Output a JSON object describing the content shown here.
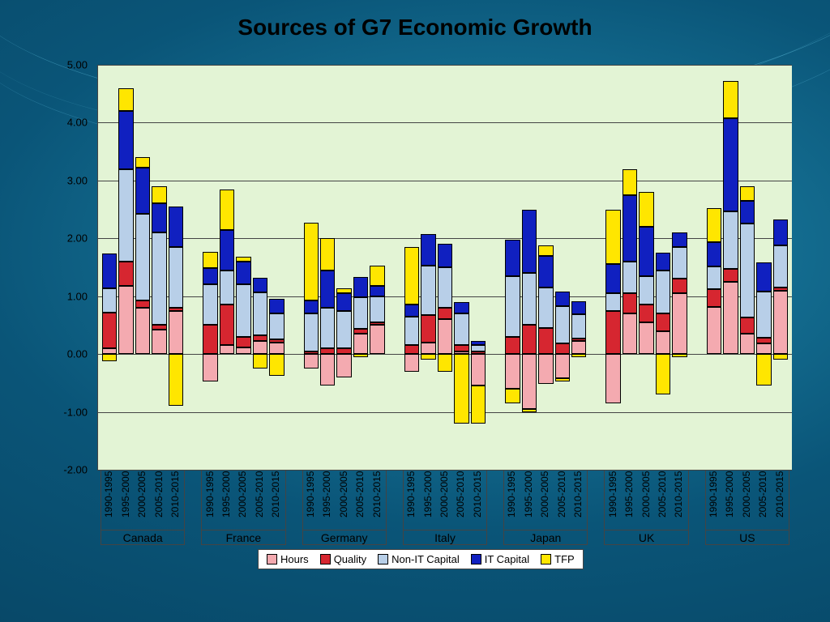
{
  "title": "Sources of G7 Economic Growth",
  "chart": {
    "type": "stacked-bar",
    "background_color": "#e3f4d5",
    "slide_background": "radial #1f89ad -> #063d5a",
    "grid_color": "#444444",
    "ylim": [
      -2.0,
      5.0
    ],
    "ytick_step": 1.0,
    "yticks": [
      "-2.00",
      "-1.00",
      "0.00",
      "1.00",
      "2.00",
      "3.00",
      "4.00",
      "5.00"
    ],
    "y_fontsize": 13,
    "periods": [
      "1990-1995",
      "1995-2000",
      "2000-2005",
      "2005-2010",
      "2010-2015"
    ],
    "series": [
      {
        "key": "Hours",
        "color": "#f4aab0"
      },
      {
        "key": "Quality",
        "color": "#d62630"
      },
      {
        "key": "Non-IT Capital",
        "color": "#b8cfe8"
      },
      {
        "key": "IT Capital",
        "color": "#1020c0"
      },
      {
        "key": "TFP",
        "color": "#ffe600"
      }
    ],
    "countries": [
      {
        "name": "Canada",
        "bars": [
          {
            "Hours": 0.1,
            "Quality": 0.62,
            "Non-IT Capital": 0.42,
            "IT Capital": 0.6,
            "TFP": -0.12
          },
          {
            "Hours": 1.18,
            "Quality": 0.42,
            "Non-IT Capital": 1.6,
            "IT Capital": 1.0,
            "TFP": 0.4
          },
          {
            "Hours": 0.8,
            "Quality": 0.12,
            "Non-IT Capital": 1.5,
            "IT Capital": 0.8,
            "TFP": 0.18
          },
          {
            "Hours": 0.42,
            "Quality": 0.08,
            "Non-IT Capital": 1.6,
            "IT Capital": 0.5,
            "TFP": 0.3
          },
          {
            "Hours": 0.75,
            "Quality": 0.05,
            "Non-IT Capital": 1.05,
            "IT Capital": 0.7,
            "TFP": -0.9
          }
        ]
      },
      {
        "name": "France",
        "bars": [
          {
            "Hours": -0.48,
            "Quality": 0.5,
            "Non-IT Capital": 0.7,
            "IT Capital": 0.28,
            "TFP": 0.28
          },
          {
            "Hours": 0.15,
            "Quality": 0.7,
            "Non-IT Capital": 0.6,
            "IT Capital": 0.7,
            "TFP": 0.7
          },
          {
            "Hours": 0.12,
            "Quality": 0.18,
            "Non-IT Capital": 0.9,
            "IT Capital": 0.4,
            "TFP": 0.08
          },
          {
            "Hours": 0.22,
            "Quality": 0.1,
            "Non-IT Capital": 0.75,
            "IT Capital": 0.25,
            "TFP": -0.25
          },
          {
            "Hours": 0.2,
            "Quality": 0.05,
            "Non-IT Capital": 0.45,
            "IT Capital": 0.25,
            "TFP": -0.38
          }
        ]
      },
      {
        "name": "Germany",
        "bars": [
          {
            "Hours": -0.25,
            "Quality": 0.05,
            "Non-IT Capital": 0.65,
            "IT Capital": 0.22,
            "TFP": 1.35
          },
          {
            "Hours": -0.55,
            "Quality": 0.1,
            "Non-IT Capital": 0.7,
            "IT Capital": 0.65,
            "TFP": 0.55
          },
          {
            "Hours": -0.4,
            "Quality": 0.1,
            "Non-IT Capital": 0.65,
            "IT Capital": 0.3,
            "TFP": 0.08
          },
          {
            "Hours": 0.35,
            "Quality": 0.08,
            "Non-IT Capital": 0.55,
            "IT Capital": 0.35,
            "TFP": -0.05
          },
          {
            "Hours": 0.5,
            "Quality": 0.05,
            "Non-IT Capital": 0.45,
            "IT Capital": 0.18,
            "TFP": 0.35
          }
        ]
      },
      {
        "name": "Italy",
        "bars": [
          {
            "Hours": -0.3,
            "Quality": 0.15,
            "Non-IT Capital": 0.5,
            "IT Capital": 0.2,
            "TFP": 1.0
          },
          {
            "Hours": 0.2,
            "Quality": 0.48,
            "Non-IT Capital": 0.85,
            "IT Capital": 0.55,
            "TFP": -0.1
          },
          {
            "Hours": 0.6,
            "Quality": 0.2,
            "Non-IT Capital": 0.7,
            "IT Capital": 0.4,
            "TFP": -0.3
          },
          {
            "Hours": 0.05,
            "Quality": 0.1,
            "Non-IT Capital": 0.55,
            "IT Capital": 0.2,
            "TFP": -1.2
          },
          {
            "Hours": -0.55,
            "Quality": 0.05,
            "Non-IT Capital": 0.1,
            "IT Capital": 0.08,
            "TFP": -0.65
          }
        ]
      },
      {
        "name": "Japan",
        "bars": [
          {
            "Hours": -0.6,
            "Quality": 0.3,
            "Non-IT Capital": 1.05,
            "IT Capital": 0.62,
            "TFP": -0.25
          },
          {
            "Hours": -0.95,
            "Quality": 0.5,
            "Non-IT Capital": 0.9,
            "IT Capital": 1.1,
            "TFP": -0.05
          },
          {
            "Hours": -0.52,
            "Quality": 0.45,
            "Non-IT Capital": 0.7,
            "IT Capital": 0.55,
            "TFP": 0.18
          },
          {
            "Hours": -0.42,
            "Quality": 0.18,
            "Non-IT Capital": 0.65,
            "IT Capital": 0.25,
            "TFP": -0.05
          },
          {
            "Hours": 0.22,
            "Quality": 0.05,
            "Non-IT Capital": 0.42,
            "IT Capital": 0.22,
            "TFP": -0.05
          }
        ]
      },
      {
        "name": "UK",
        "bars": [
          {
            "Hours": -0.85,
            "Quality": 0.75,
            "Non-IT Capital": 0.3,
            "IT Capital": 0.5,
            "TFP": 0.95
          },
          {
            "Hours": 0.7,
            "Quality": 0.35,
            "Non-IT Capital": 0.55,
            "IT Capital": 1.15,
            "TFP": 0.45
          },
          {
            "Hours": 0.55,
            "Quality": 0.3,
            "Non-IT Capital": 0.5,
            "IT Capital": 0.85,
            "TFP": 0.6
          },
          {
            "Hours": 0.4,
            "Quality": 0.3,
            "Non-IT Capital": 0.75,
            "IT Capital": 0.3,
            "TFP": -0.7
          },
          {
            "Hours": 1.05,
            "Quality": 0.25,
            "Non-IT Capital": 0.55,
            "IT Capital": 0.25,
            "TFP": -0.05
          }
        ]
      },
      {
        "name": "US",
        "bars": [
          {
            "Hours": 0.82,
            "Quality": 0.3,
            "Non-IT Capital": 0.4,
            "IT Capital": 0.42,
            "TFP": 0.58
          },
          {
            "Hours": 1.25,
            "Quality": 0.22,
            "Non-IT Capital": 1.0,
            "IT Capital": 1.6,
            "TFP": 0.65
          },
          {
            "Hours": 0.35,
            "Quality": 0.28,
            "Non-IT Capital": 1.62,
            "IT Capital": 0.4,
            "TFP": 0.25
          },
          {
            "Hours": 0.18,
            "Quality": 0.1,
            "Non-IT Capital": 0.8,
            "IT Capital": 0.5,
            "TFP": -0.55
          },
          {
            "Hours": 1.1,
            "Quality": 0.05,
            "Non-IT Capital": 0.73,
            "IT Capital": 0.45,
            "TFP": -0.1
          }
        ]
      }
    ],
    "title_fontsize": 28,
    "x_label_fontsize": 12,
    "country_label_fontsize": 14,
    "legend_fontsize": 13
  }
}
